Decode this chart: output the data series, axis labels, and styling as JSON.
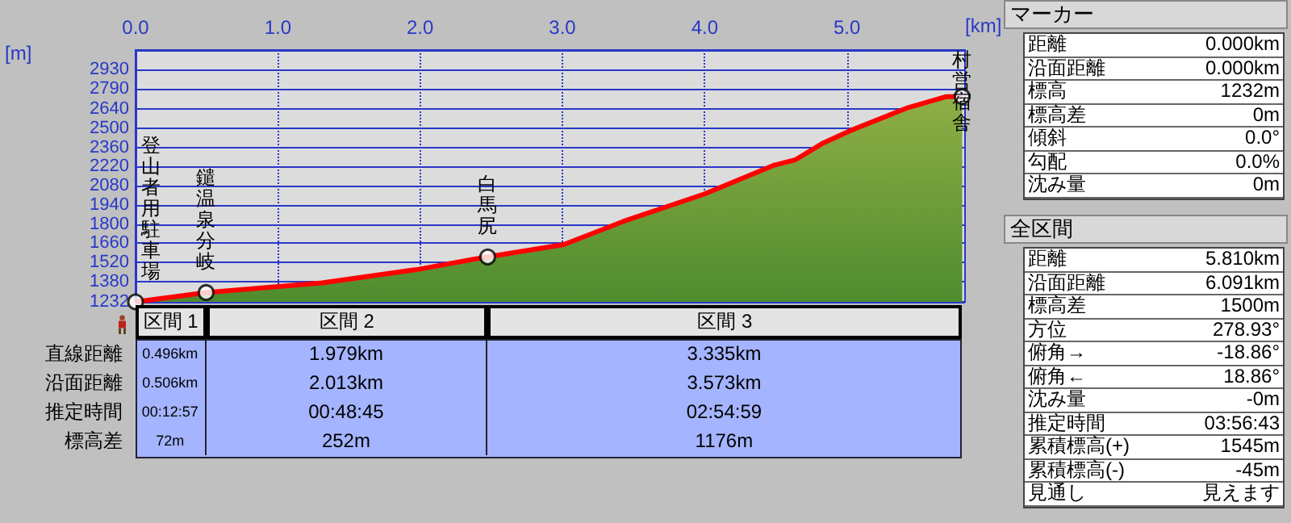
{
  "chart_data": {
    "type": "area",
    "xlabel": "[km]",
    "ylabel": "[m]",
    "xlim": [
      0,
      5.83
    ],
    "xticks": [
      {
        "value": 0,
        "label": "0.0"
      },
      {
        "value": 1,
        "label": "1.0"
      },
      {
        "value": 2,
        "label": "2.0"
      },
      {
        "value": 3,
        "label": "3.0"
      },
      {
        "value": 4,
        "label": "4.0"
      },
      {
        "value": 5,
        "label": "5.0"
      }
    ],
    "ylim": [
      1232,
      3070
    ],
    "yticks": [
      1232,
      1380,
      1520,
      1660,
      1800,
      1940,
      2080,
      2220,
      2360,
      2500,
      2640,
      2790,
      2930
    ],
    "grid": true,
    "series": [
      {
        "color": "#ff0000",
        "x": [
          0,
          0.496,
          1.31,
          1.99,
          2.36,
          2.475,
          3.01,
          3.43,
          4.0,
          4.49,
          4.64,
          4.83,
          5.02,
          5.43,
          5.7,
          5.81
        ],
        "values": [
          1232,
          1300,
          1370,
          1470,
          1540,
          1560,
          1650,
          1820,
          2020,
          2230,
          2270,
          2390,
          2480,
          2650,
          2730,
          2730
        ]
      },
      {
        "type": "scatter",
        "color": "#ffffff",
        "x": [
          0,
          0.496,
          2.475,
          5.81
        ],
        "values": [
          1232,
          1300,
          1560,
          2730
        ]
      }
    ],
    "annotations": [
      {
        "text": "登山者用駐車場",
        "x": 0,
        "y": 1232
      },
      {
        "text": "鑓温泉分岐",
        "x": 0.496,
        "y": 1300
      },
      {
        "text": "白馬尻",
        "x": 2.475,
        "y": 1560
      },
      {
        "text": "村営宿舎",
        "x": 5.81,
        "y": 2730
      },
      "区間 1",
      "区間 2",
      "区間 3",
      "直線距離",
      "沿面距離",
      "推定時間",
      "標高差",
      "0.496km",
      "1.979km",
      "3.335km",
      "0.506km",
      "2.013km",
      "3.573km",
      "00:12:57",
      "00:48:45",
      "02:54:59",
      "72m",
      "252m",
      "1176m",
      "マーカー",
      "距離",
      "0.000km",
      "沿面距離",
      "0.000km",
      "標高",
      "1232m",
      "標高差",
      "0m",
      "傾斜",
      "0.0°",
      "勾配",
      "0.0%",
      "沈み量",
      "0m",
      "全区間",
      "距離",
      "5.810km",
      "沿面距離",
      "6.091km",
      "標高差",
      "1500m",
      "方位",
      "278.93°",
      "俯角→",
      "-18.86°",
      "俯角←",
      "18.86°",
      "沈み量",
      "-0m",
      "推定時間",
      "03:56:43",
      "累積標高(+)",
      "1545m",
      "累積標高(-)",
      "-45m",
      "見通し",
      "見えます"
    ]
  }
}
